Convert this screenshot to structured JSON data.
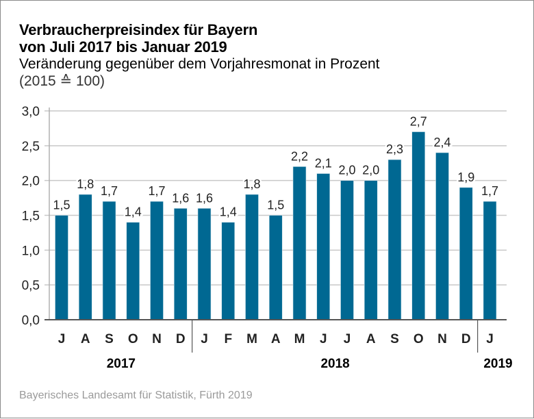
{
  "header": {
    "title_line1": "Verbraucherpreisindex für Bayern",
    "title_line2": "von Juli 2017 bis Januar 2019",
    "subtitle": "Veränderung gegenüber dem Vorjahresmonat in Prozent",
    "subtitle2": "(2015 ≙ 100)"
  },
  "footer": {
    "source": "Bayerisches Landesamt für Statistik, Fürth 2019"
  },
  "colors": {
    "bar": "#006892",
    "gridline": "#c8c8c8",
    "axis": "#555555",
    "source_text": "#9a9a9a"
  },
  "chart_data": {
    "type": "bar",
    "title": "Verbraucherpreisindex für Bayern von Juli 2017 bis Januar 2019",
    "subtitle": "Veränderung gegenüber dem Vorjahresmonat in Prozent (2015 ≙ 100)",
    "xlabel": "",
    "ylabel": "",
    "ylim": [
      0,
      3.0
    ],
    "yticks": [
      0,
      0.5,
      1.0,
      1.5,
      2.0,
      2.5,
      3.0
    ],
    "ytick_labels": [
      "0,0",
      "0,5",
      "1,0",
      "1,5",
      "2,0",
      "2,5",
      "3,0"
    ],
    "grid": true,
    "legend": "none",
    "categories": [
      "J",
      "A",
      "S",
      "O",
      "N",
      "D",
      "J",
      "F",
      "M",
      "A",
      "M",
      "J",
      "J",
      "A",
      "S",
      "O",
      "N",
      "D",
      "J"
    ],
    "months_full": [
      "Jul 2017",
      "Aug 2017",
      "Sep 2017",
      "Okt 2017",
      "Nov 2017",
      "Dez 2017",
      "Jan 2018",
      "Feb 2018",
      "Mär 2018",
      "Apr 2018",
      "Mai 2018",
      "Jun 2018",
      "Jul 2018",
      "Aug 2018",
      "Sep 2018",
      "Okt 2018",
      "Nov 2018",
      "Dez 2018",
      "Jan 2019"
    ],
    "values": [
      1.5,
      1.8,
      1.7,
      1.4,
      1.7,
      1.6,
      1.6,
      1.4,
      1.8,
      1.5,
      2.2,
      2.1,
      2.0,
      2.0,
      2.3,
      2.7,
      2.4,
      1.9,
      1.7
    ],
    "value_labels": [
      "1,5",
      "1,8",
      "1,7",
      "1,4",
      "1,7",
      "1,6",
      "1,6",
      "1,4",
      "1,8",
      "1,5",
      "2,2",
      "2,1",
      "2,0",
      "2,0",
      "2,3",
      "2,7",
      "2,4",
      "1,9",
      "1,7"
    ],
    "year_groups": [
      {
        "label": "2017",
        "start": 0,
        "end": 5
      },
      {
        "label": "2018",
        "start": 6,
        "end": 17
      },
      {
        "label": "2019",
        "start": 18,
        "end": 18
      }
    ]
  }
}
